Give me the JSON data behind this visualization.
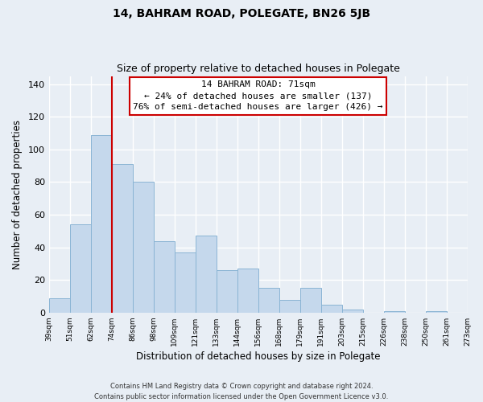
{
  "title": "14, BAHRAM ROAD, POLEGATE, BN26 5JB",
  "subtitle": "Size of property relative to detached houses in Polegate",
  "xlabel": "Distribution of detached houses by size in Polegate",
  "ylabel": "Number of detached properties",
  "bar_labels": [
    "39sqm",
    "51sqm",
    "62sqm",
    "74sqm",
    "86sqm",
    "98sqm",
    "109sqm",
    "121sqm",
    "133sqm",
    "144sqm",
    "156sqm",
    "168sqm",
    "179sqm",
    "191sqm",
    "203sqm",
    "215sqm",
    "226sqm",
    "238sqm",
    "250sqm",
    "261sqm",
    "273sqm"
  ],
  "bar_values": [
    9,
    54,
    109,
    91,
    80,
    44,
    37,
    47,
    26,
    27,
    15,
    8,
    15,
    5,
    2,
    0,
    1,
    0,
    1,
    0
  ],
  "bar_color": "#c5d8ec",
  "bar_edge_color": "#8ab4d4",
  "vline_color": "#cc0000",
  "ylim": [
    0,
    145
  ],
  "yticks": [
    0,
    20,
    40,
    60,
    80,
    100,
    120,
    140
  ],
  "annotation_title": "14 BAHRAM ROAD: 71sqm",
  "annotation_line1": "← 24% of detached houses are smaller (137)",
  "annotation_line2": "76% of semi-detached houses are larger (426) →",
  "footer1": "Contains HM Land Registry data © Crown copyright and database right 2024.",
  "footer2": "Contains public sector information licensed under the Open Government Licence v3.0.",
  "background_color": "#e8eef5",
  "grid_color": "#ffffff"
}
